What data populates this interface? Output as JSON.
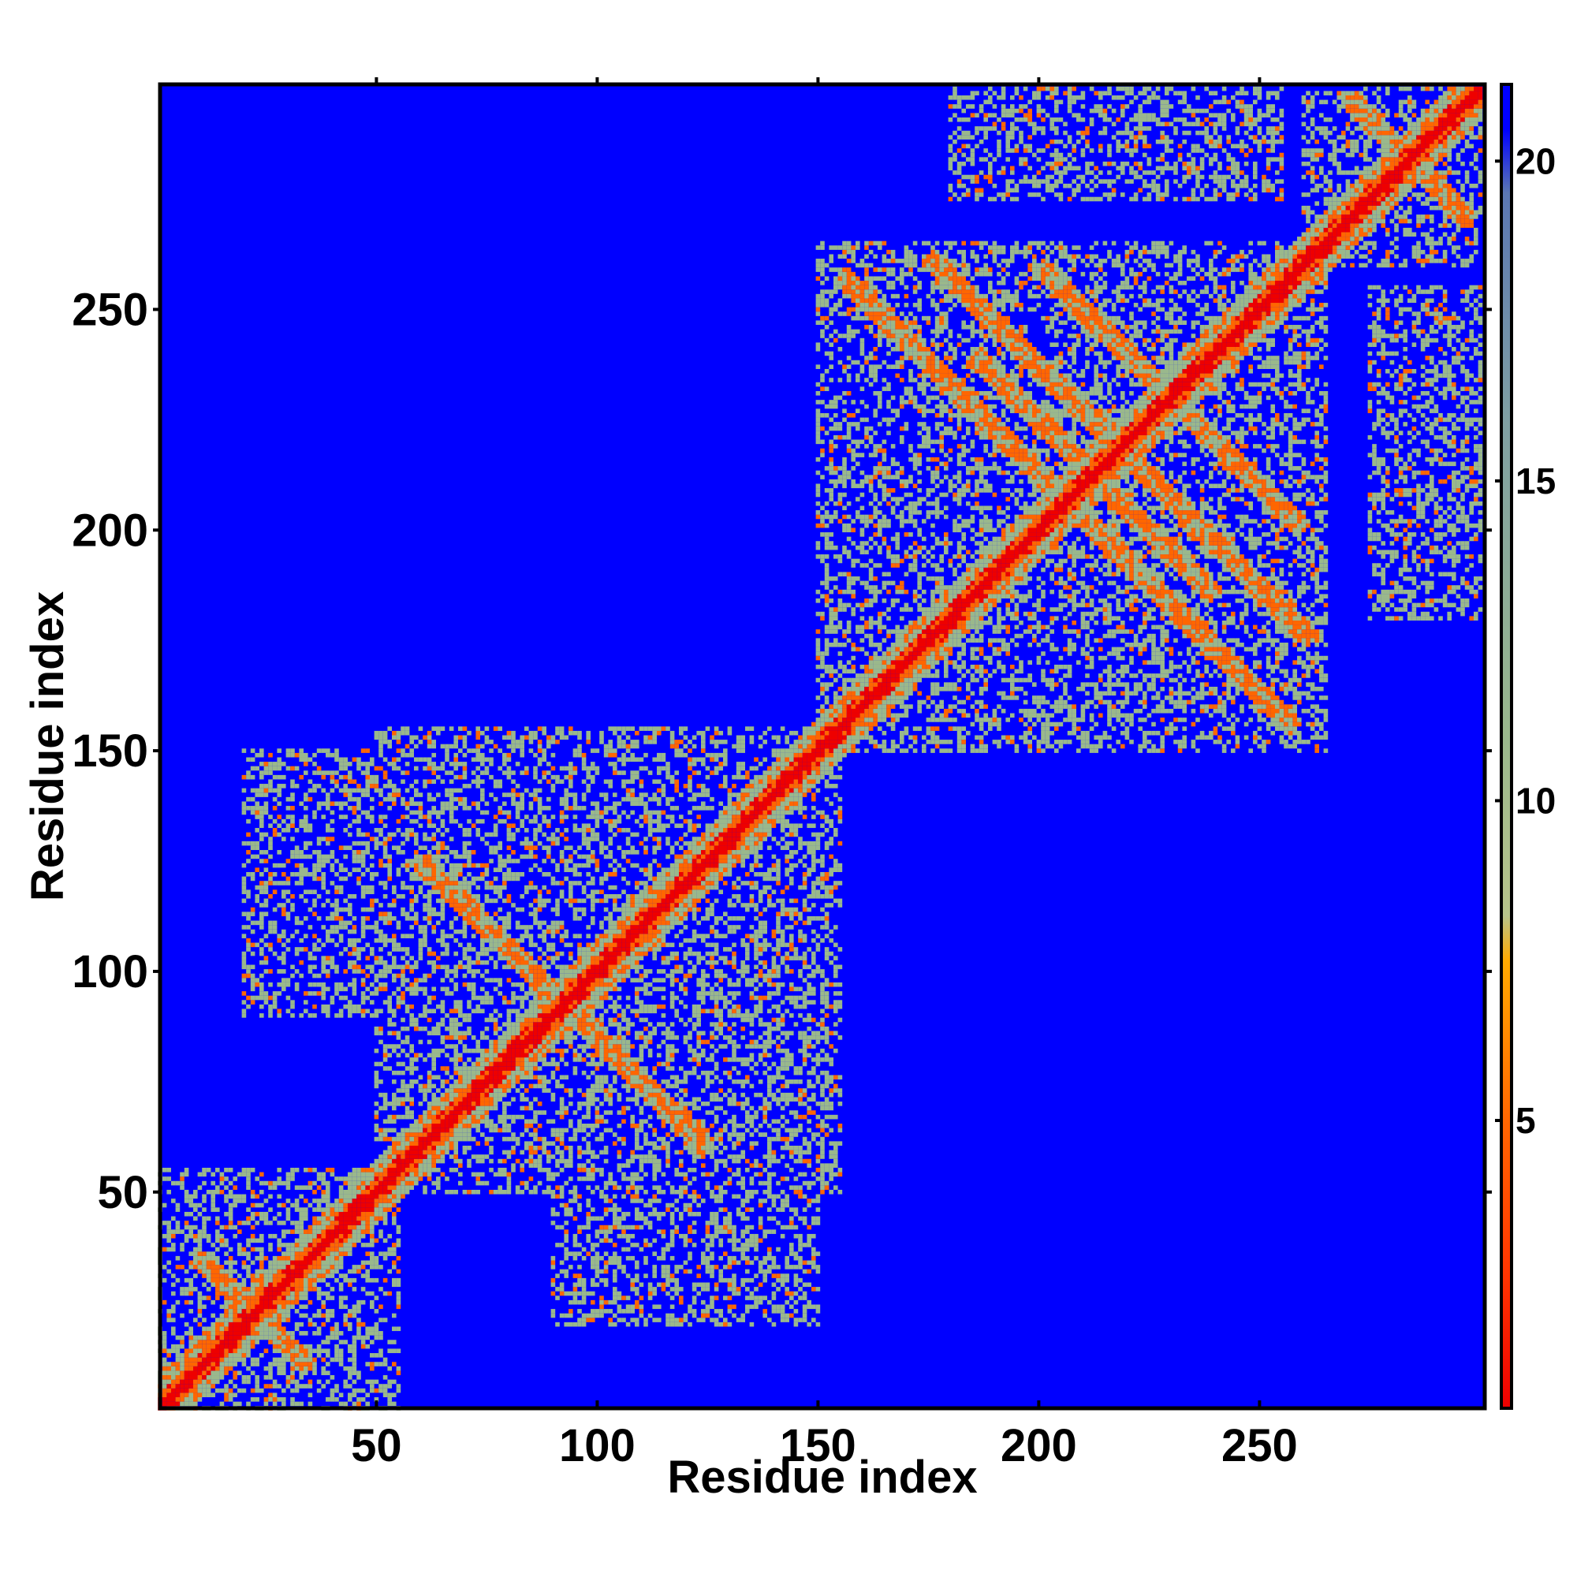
{
  "chart_data": {
    "type": "heatmap",
    "title": "",
    "xlabel": "Residue index",
    "ylabel": "Residue index",
    "xlim": [
      1,
      301
    ],
    "ylim": [
      1,
      301
    ],
    "x_ticks": [
      50,
      100,
      150,
      200,
      250
    ],
    "y_ticks": [
      50,
      100,
      150,
      200,
      250
    ],
    "colorbar": {
      "range": [
        0.5,
        21.2
      ],
      "ticks": [
        5,
        10,
        15,
        20
      ],
      "stops": [
        {
          "value": 0.5,
          "color": "#ee0000"
        },
        {
          "value": 2.5,
          "color": "#ff3300"
        },
        {
          "value": 5.0,
          "color": "#ff6600"
        },
        {
          "value": 7.5,
          "color": "#ffaa00"
        },
        {
          "value": 8.2,
          "color": "#b8c48a"
        },
        {
          "value": 11.0,
          "color": "#9ab88c"
        },
        {
          "value": 16.0,
          "color": "#7f9fa3"
        },
        {
          "value": 19.5,
          "color": "#5b77b3"
        },
        {
          "value": 20.5,
          "color": "#0000ff"
        }
      ]
    },
    "background_color": "#0000ff",
    "diagonal_color": "#ee0000",
    "contact_color": "#9ab88c",
    "close_contact_color": "#ff6600",
    "n_residues": 300,
    "contact_blocks": [
      {
        "x": [
          1,
          55
        ],
        "y": [
          1,
          55
        ]
      },
      {
        "x": [
          50,
          155
        ],
        "y": [
          50,
          155
        ]
      },
      {
        "x": [
          150,
          265
        ],
        "y": [
          150,
          265
        ]
      },
      {
        "x": [
          260,
          301
        ],
        "y": [
          260,
          301
        ]
      },
      {
        "x": [
          20,
          60
        ],
        "y": [
          90,
          150
        ]
      },
      {
        "x": [
          90,
          150
        ],
        "y": [
          20,
          60
        ]
      },
      {
        "x": [
          130,
          150
        ],
        "y": [
          40,
          105
        ]
      },
      {
        "x": [
          40,
          105
        ],
        "y": [
          130,
          150
        ]
      },
      {
        "x": [
          180,
          255
        ],
        "y": [
          275,
          300
        ]
      },
      {
        "x": [
          275,
          300
        ],
        "y": [
          180,
          255
        ]
      }
    ],
    "antiparallel_strands": [
      {
        "from": [
          155,
          258
        ],
        "to": [
          258,
          155
        ]
      },
      {
        "from": [
          175,
          262
        ],
        "to": [
          262,
          175
        ]
      },
      {
        "from": [
          200,
          260
        ],
        "to": [
          260,
          200
        ]
      },
      {
        "from": [
          185,
          240
        ],
        "to": [
          240,
          185
        ]
      },
      {
        "from": [
          10,
          35
        ],
        "to": [
          35,
          10
        ]
      },
      {
        "from": [
          60,
          125
        ],
        "to": [
          125,
          60
        ]
      },
      {
        "from": [
          270,
          298
        ],
        "to": [
          298,
          270
        ]
      }
    ]
  }
}
